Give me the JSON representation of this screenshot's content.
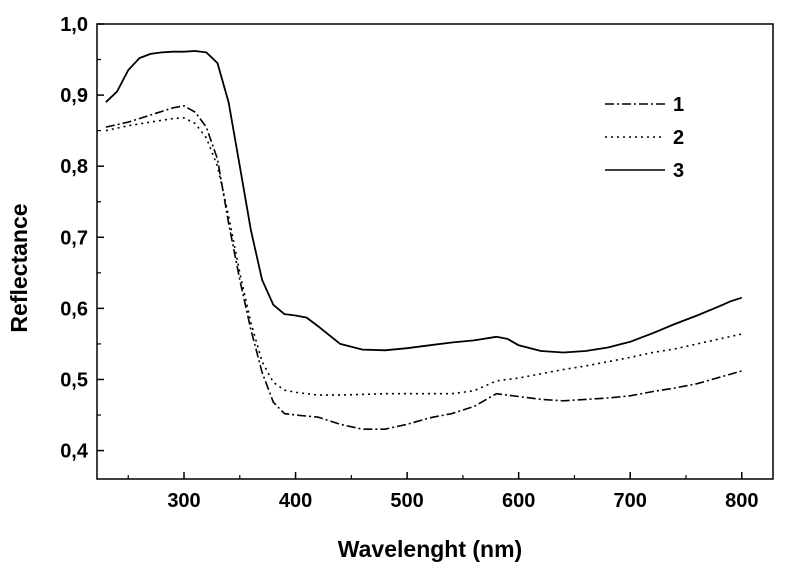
{
  "chart_data": {
    "type": "line",
    "title": "",
    "xlabel": "Wavelenght (nm)",
    "ylabel": "Reflectance",
    "xlim": [
      222,
      828
    ],
    "ylim": [
      0.36,
      1.0
    ],
    "xticks": [
      300,
      400,
      500,
      600,
      700,
      800
    ],
    "xtick_labels": [
      "300",
      "400",
      "500",
      "600",
      "700",
      "800"
    ],
    "yticks": [
      0.4,
      0.5,
      0.6,
      0.7,
      0.8,
      0.9,
      1.0
    ],
    "ytick_labels": [
      "0,4",
      "0,5",
      "0,6",
      "0,7",
      "0,8",
      "0,9",
      "1,0"
    ],
    "grid": false,
    "legend_position": "top-right",
    "series": [
      {
        "name": "1",
        "style": "dash-dot",
        "x": [
          230,
          250,
          270,
          290,
          300,
          310,
          320,
          330,
          340,
          350,
          360,
          370,
          380,
          390,
          400,
          420,
          440,
          460,
          480,
          500,
          520,
          540,
          560,
          580,
          600,
          620,
          640,
          660,
          680,
          700,
          720,
          740,
          760,
          780,
          800
        ],
        "y": [
          0.855,
          0.862,
          0.872,
          0.882,
          0.885,
          0.876,
          0.855,
          0.81,
          0.72,
          0.64,
          0.57,
          0.51,
          0.468,
          0.452,
          0.45,
          0.447,
          0.437,
          0.43,
          0.43,
          0.437,
          0.446,
          0.452,
          0.462,
          0.48,
          0.476,
          0.472,
          0.47,
          0.472,
          0.474,
          0.477,
          0.483,
          0.488,
          0.494,
          0.503,
          0.512
        ]
      },
      {
        "name": "2",
        "style": "dotted",
        "x": [
          230,
          250,
          270,
          290,
          300,
          310,
          320,
          330,
          340,
          350,
          360,
          370,
          380,
          390,
          400,
          420,
          440,
          460,
          480,
          500,
          520,
          540,
          560,
          580,
          600,
          620,
          640,
          660,
          680,
          700,
          720,
          740,
          760,
          780,
          800
        ],
        "y": [
          0.85,
          0.857,
          0.862,
          0.867,
          0.868,
          0.86,
          0.84,
          0.8,
          0.73,
          0.65,
          0.58,
          0.525,
          0.496,
          0.485,
          0.482,
          0.478,
          0.478,
          0.479,
          0.48,
          0.48,
          0.48,
          0.48,
          0.484,
          0.498,
          0.502,
          0.508,
          0.514,
          0.519,
          0.525,
          0.531,
          0.538,
          0.543,
          0.55,
          0.557,
          0.564
        ]
      },
      {
        "name": "3",
        "style": "solid",
        "x": [
          230,
          240,
          250,
          260,
          270,
          280,
          290,
          300,
          310,
          320,
          330,
          340,
          350,
          360,
          370,
          380,
          390,
          400,
          410,
          420,
          440,
          460,
          480,
          500,
          520,
          540,
          560,
          580,
          590,
          600,
          620,
          640,
          660,
          680,
          700,
          720,
          740,
          760,
          780,
          790,
          800
        ],
        "y": [
          0.89,
          0.905,
          0.935,
          0.952,
          0.958,
          0.96,
          0.961,
          0.961,
          0.962,
          0.96,
          0.945,
          0.89,
          0.8,
          0.71,
          0.64,
          0.605,
          0.592,
          0.59,
          0.587,
          0.575,
          0.55,
          0.542,
          0.541,
          0.544,
          0.548,
          0.552,
          0.555,
          0.56,
          0.557,
          0.548,
          0.54,
          0.538,
          0.54,
          0.545,
          0.553,
          0.565,
          0.578,
          0.59,
          0.603,
          0.61,
          0.615
        ]
      }
    ]
  }
}
